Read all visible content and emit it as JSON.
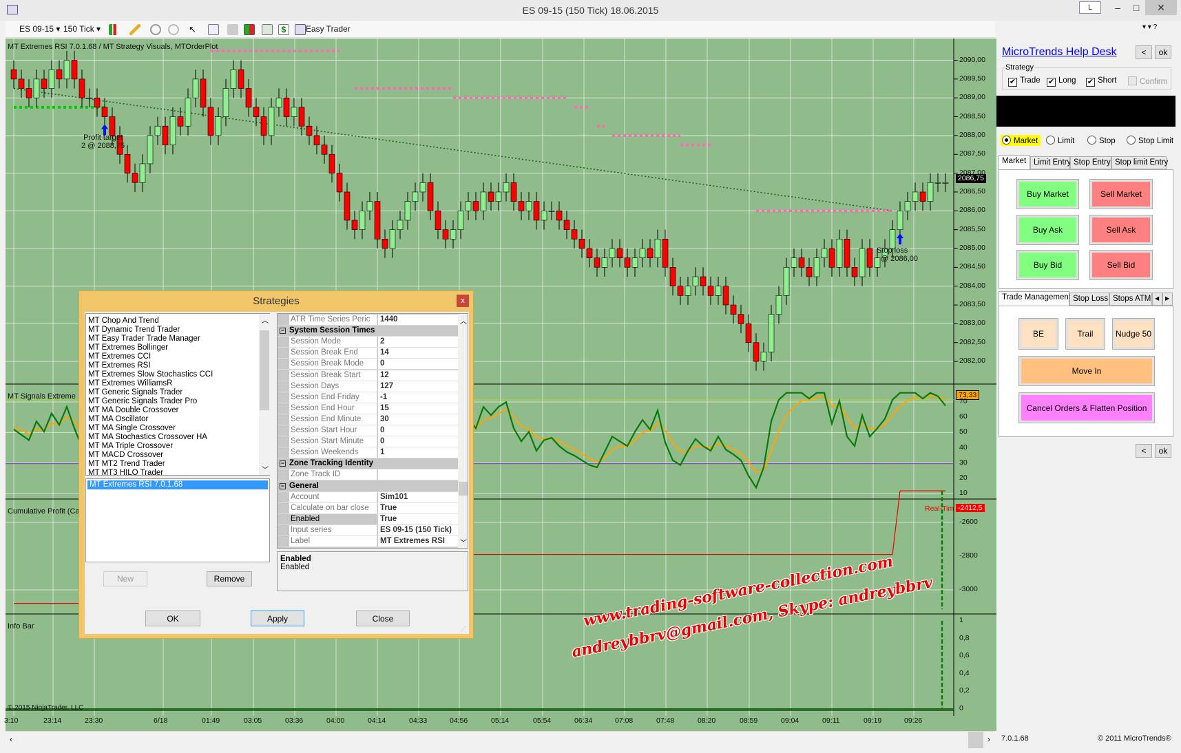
{
  "window": {
    "title": "ES 09-15 (150 Tick)  18.06.2015",
    "link_button": "L",
    "minimize": "–",
    "maximize": "□",
    "close": "✕"
  },
  "toolbar": {
    "instrument": "ES 09-15",
    "interval": "150 Tick",
    "easy_trader": "Easy Trader",
    "icons": [
      "candlestick-icon",
      "pencil-icon",
      "zoom-in-icon",
      "zoom-out-icon",
      "cursor-icon",
      "magnifier-icon",
      "properties-icon",
      "bars-icon",
      "indicator-icon",
      "dollar-icon",
      "calculator-icon"
    ]
  },
  "chart": {
    "title": "MT Extremes RSI 7.0.1.68 / MT Strategy Visuals, MTOrderPlot",
    "price_ticks": [
      "2090,00",
      "2089,50",
      "2089,00",
      "2088,50",
      "2088,00",
      "2087,50",
      "2087,00",
      "2086,50",
      "2086,00",
      "2085,50",
      "2085,00",
      "2084,50",
      "2084,00",
      "2083,50",
      "2083,00",
      "2082,50",
      "2082,00"
    ],
    "last_price": "2086,75",
    "signals_label": "MT Signals Extreme",
    "rsi_ticks": [
      "70",
      "60",
      "50",
      "40",
      "30",
      "20",
      "10"
    ],
    "rsi_value": "73,33",
    "profit_label": "Cumulative Profit (Ca",
    "profit_ticks": [
      "-2600",
      "-2800",
      "-3000"
    ],
    "profit_value": "-2412,5",
    "realtime_label": "Real-Tim",
    "info_label": "Info Bar",
    "info_ticks": [
      "1",
      "0,8",
      "0,6",
      "0,4",
      "0,2",
      "0"
    ],
    "copyright": "© 2015 NinjaTrader, LLC",
    "time_ticks": [
      "3:10",
      "23:14",
      "23:30",
      "6/18",
      "01:49",
      "03:05",
      "03:36",
      "04:00",
      "04:14",
      "04:33",
      "04:56",
      "05:14",
      "05:54",
      "06:34",
      "07:08",
      "07:48",
      "08:20",
      "08:59",
      "09:04",
      "09:11",
      "09:19",
      "09:26"
    ],
    "profit_target": {
      "line1": "Profit target",
      "line2": "2 @ 2088,75"
    },
    "stop_loss": {
      "line1": "Stop loss",
      "line2": "@ 2086,00"
    },
    "colors": {
      "background": "#8fbc8a",
      "up": "#90ee90",
      "down": "#ff0000",
      "rsi": "#0a7a0a",
      "rsi_avg": "#ffa500",
      "stop": "#ff69b4",
      "target": "#00cc00"
    }
  },
  "chart_data": {
    "type": "candlestick",
    "closes": [
      2089.5,
      2089.25,
      2089,
      2089.5,
      2089.25,
      2089.75,
      2089.5,
      2090,
      2089.5,
      2089,
      2089,
      2088.75,
      2088.5,
      2088,
      2087.5,
      2087,
      2086.75,
      2087.25,
      2088,
      2088.25,
      2087.75,
      2088.5,
      2088.25,
      2089,
      2089.5,
      2088.75,
      2088,
      2088.5,
      2089.25,
      2089.75,
      2089.25,
      2088.75,
      2088.5,
      2088,
      2088.75,
      2089,
      2088.5,
      2088.75,
      2088.25,
      2088,
      2087.75,
      2087.5,
      2087,
      2086.5,
      2085.75,
      2085.5,
      2086,
      2086.25,
      2085.25,
      2085,
      2085.5,
      2085.75,
      2086.25,
      2086.5,
      2086.75,
      2086,
      2085.5,
      2085.25,
      2085.5,
      2086,
      2086.25,
      2086,
      2086.5,
      2086.25,
      2086.5,
      2086.75,
      2086.25,
      2086,
      2086.25,
      2085.75,
      2086,
      2086,
      2085.75,
      2085.5,
      2085.25,
      2085,
      2084.75,
      2084.5,
      2084.75,
      2085,
      2084.75,
      2084.5,
      2084.75,
      2085,
      2084.75,
      2085.25,
      2084.5,
      2084,
      2083.75,
      2084,
      2084.25,
      2084,
      2083.75,
      2084,
      2083.5,
      2083.25,
      2083,
      2082.5,
      2082,
      2082.25,
      2083.25,
      2083.75,
      2084.5,
      2084.75,
      2084.5,
      2084.25,
      2084.75,
      2085,
      2084.5,
      2085.25,
      2084.5,
      2084.25,
      2085,
      2084.5,
      2084.75,
      2085,
      2085.5,
      2086,
      2086.25,
      2086.5,
      2086.25,
      2086.75,
      2086.75,
      2086.75
    ],
    "stop_levels": [
      {
        "from_bar": 26,
        "to_bar": 43,
        "price": 2090.25
      },
      {
        "from_bar": 45,
        "to_bar": 58,
        "price": 2089.25
      },
      {
        "from_bar": 58,
        "to_bar": 73,
        "price": 2089.0
      },
      {
        "from_bar": 74,
        "to_bar": 76,
        "price": 2088.75
      },
      {
        "from_bar": 77,
        "to_bar": 78,
        "price": 2088.25
      },
      {
        "from_bar": 79,
        "to_bar": 88,
        "price": 2088.0
      },
      {
        "from_bar": 88,
        "to_bar": 92,
        "price": 2087.75
      },
      {
        "from_bar": 98,
        "to_bar": 116,
        "price": 2086.0
      }
    ],
    "target_level": {
      "from_bar": 0,
      "to_bar": 12,
      "price": 2088.75
    },
    "trend_line": {
      "from": [
        0,
        2089.25
      ],
      "to": [
        116,
        2086.0
      ]
    },
    "entries": [
      {
        "bar": 12,
        "label": "Profit target"
      },
      {
        "bar": 117,
        "label": "Stop loss"
      }
    ],
    "cumulative_profit": [
      {
        "from_bar": 0,
        "to_bar": 9,
        "value": -3080
      },
      {
        "from_bar": 55,
        "to_bar": 116,
        "value": -2790
      },
      {
        "from_bar": 117,
        "to_bar": 123,
        "value": -2412.5
      }
    ],
    "price_range": [
      2082,
      2090
    ],
    "rsi_range": [
      10,
      70
    ]
  },
  "panel": {
    "help_desk": "MicroTrends Help Desk",
    "back": "<",
    "ok": "ok",
    "strategy_label": "Strategy",
    "checks": [
      {
        "label": "Trade",
        "checked": true
      },
      {
        "label": "Long",
        "checked": true
      },
      {
        "label": "Short",
        "checked": true
      },
      {
        "label": "Confirm",
        "checked": false
      }
    ],
    "order_types": [
      {
        "label": "Market",
        "selected": true
      },
      {
        "label": "Limit"
      },
      {
        "label": "Stop"
      },
      {
        "label": "Stop Limit"
      }
    ],
    "entry_tabs": [
      "Market",
      "Limit Entry",
      "Stop Entry",
      "Stop limit Entry"
    ],
    "buy_market": "Buy Market",
    "sell_market": "Sell Market",
    "buy_ask": "Buy Ask",
    "sell_ask": "Sell Ask",
    "buy_bid": "Buy Bid",
    "sell_bid": "Sell Bid",
    "mgmt_tabs": [
      "Trade Management",
      "Stop Loss",
      "Stops ATM"
    ],
    "be": "BE",
    "trail": "Trail",
    "nudge": "Nudge 50",
    "move_in": "Move In",
    "cancel_flatten": "Cancel Orders & Flatten Position",
    "colors": {
      "buy": "#80ff80",
      "sell": "#ff8080",
      "mgmt": "#ffe0c0",
      "move_in": "#ffc080",
      "cancel": "#ff80ff",
      "highlight": "#ffff00"
    }
  },
  "dialog": {
    "title": "Strategies",
    "close": "x",
    "strategies": [
      "MT Chop And Trend",
      "MT Dynamic Trend Trader",
      "MT Easy Trader Trade Manager",
      "MT Extremes Bollinger",
      "MT Extremes CCI",
      "MT Extremes RSI",
      "MT Extremes Slow Stochastics CCI",
      "MT Extremes WilliamsR",
      "MT Generic Signals Trader",
      "MT Generic Signals Trader Pro",
      "MT MA Double Crossover",
      "MT MA Oscillator",
      "MT MA Single Crossover",
      "MT MA Stochastics Crossover HA",
      "MT MA Triple Crossover",
      "MT MACD Crossover",
      "MT MT2 Trend Trader",
      "MT MT3 HILO Trader"
    ],
    "active": [
      "MT Extremes RSI 7.0.1.68"
    ],
    "properties": [
      {
        "k": "ATR Time Series Peric",
        "v": "1440"
      },
      {
        "cat": "System Session Times"
      },
      {
        "k": "Session Mode",
        "v": "2"
      },
      {
        "k": "Session Break End",
        "v": "14"
      },
      {
        "k": "Session Break Mode",
        "v": "0"
      },
      {
        "k": "Session Break Start",
        "v": "12"
      },
      {
        "k": "Session Days",
        "v": "127"
      },
      {
        "k": "Session End Friday",
        "v": "-1"
      },
      {
        "k": "Session End Hour",
        "v": "15"
      },
      {
        "k": "Session End Minute",
        "v": "30"
      },
      {
        "k": "Session Start Hour",
        "v": "0"
      },
      {
        "k": "Session Start Minute",
        "v": "0"
      },
      {
        "k": "Session Weekends",
        "v": "1"
      },
      {
        "cat": "Zone Tracking Identity"
      },
      {
        "k": "Zone Track ID",
        "v": ""
      },
      {
        "cat": "General"
      },
      {
        "k": "Account",
        "v": "Sim101"
      },
      {
        "k": "Calculate on bar close",
        "v": "True"
      },
      {
        "k": "Enabled",
        "v": "True",
        "selected": true
      },
      {
        "k": "Input series",
        "v": "ES 09-15 (150 Tick)"
      },
      {
        "k": "Label",
        "v": "MT Extremes RSI"
      }
    ],
    "desc_title": "Enabled",
    "desc_text": "Enabled",
    "new": "New",
    "remove": "Remove",
    "ok": "OK",
    "apply": "Apply",
    "close_btn": "Close"
  },
  "watermark": {
    "line1": "www.trading-software-collection.com",
    "line2": "andreybbrv@gmail.com, Skype: andreybbrv"
  },
  "status": {
    "version": "7.0.1.68",
    "copyright": "© 2011 MicroTrends®"
  }
}
